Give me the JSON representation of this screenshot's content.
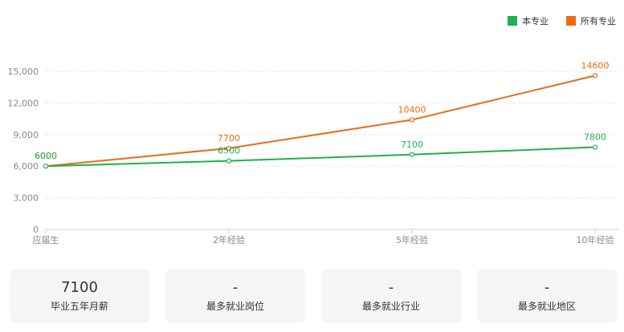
{
  "chart_data": {
    "type": "line",
    "categories": [
      "应届生",
      "2年经验",
      "5年经验",
      "10年经验"
    ],
    "series": [
      {
        "name": "本专业",
        "color": "#1db152",
        "values": [
          6000,
          6500,
          7100,
          7800
        ]
      },
      {
        "name": "所有专业",
        "color": "#ea6b14",
        "values": [
          6000,
          7700,
          10400,
          14600
        ]
      }
    ],
    "y_ticks": [
      "0",
      "3,000",
      "6,000",
      "9,000",
      "12,000",
      "15,000"
    ],
    "ylim": [
      0,
      15000
    ],
    "grid": "horizontal-dashed",
    "legend_position": "top-right",
    "title": "",
    "xlabel": "",
    "ylabel": ""
  },
  "stats": [
    {
      "value": "7100",
      "label": "毕业五年月薪"
    },
    {
      "value": "-",
      "label": "最多就业岗位"
    },
    {
      "value": "-",
      "label": "最多就业行业"
    },
    {
      "value": "-",
      "label": "最多就业地区"
    }
  ]
}
